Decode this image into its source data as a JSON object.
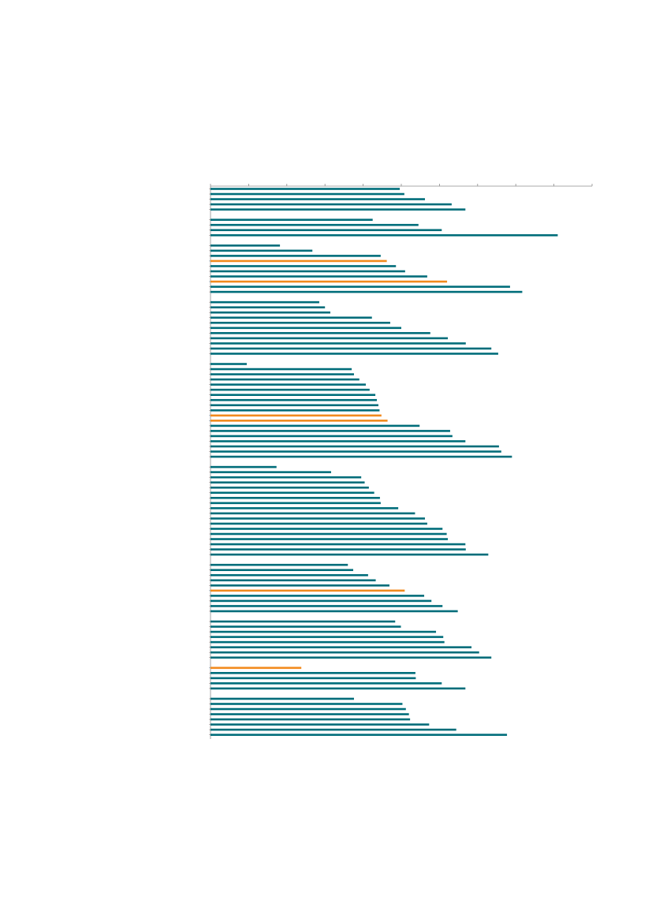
{
  "chart_data": {
    "type": "bar",
    "orientation": "horizontal",
    "title": "",
    "xlabel": "",
    "ylabel": "",
    "xlim": [
      0,
      100
    ],
    "x_ticks": [
      0,
      10,
      20,
      30,
      40,
      50,
      60,
      70,
      80,
      90,
      100
    ],
    "grid": false,
    "legend": "none",
    "colors": {
      "default": "#006d7a",
      "highlight": "#f28a1e",
      "axis": "#8c8c8c"
    },
    "groups": [
      {
        "bars": [
          {
            "value": 49.6,
            "highlight": false
          },
          {
            "value": 50.8,
            "highlight": false
          },
          {
            "value": 56.2,
            "highlight": false
          },
          {
            "value": 63.2,
            "highlight": false
          },
          {
            "value": 66.8,
            "highlight": false
          }
        ]
      },
      {
        "bars": [
          {
            "value": 42.5,
            "highlight": false
          },
          {
            "value": 54.5,
            "highlight": false
          },
          {
            "value": 60.6,
            "highlight": false
          },
          {
            "value": 91.0,
            "highlight": false
          }
        ]
      },
      {
        "bars": [
          {
            "value": 18.2,
            "highlight": false
          },
          {
            "value": 26.7,
            "highlight": false
          },
          {
            "value": 44.6,
            "highlight": false
          },
          {
            "value": 46.2,
            "highlight": true
          },
          {
            "value": 48.6,
            "highlight": false
          },
          {
            "value": 51.0,
            "highlight": false
          },
          {
            "value": 56.8,
            "highlight": false
          },
          {
            "value": 62.0,
            "highlight": true
          },
          {
            "value": 78.5,
            "highlight": false
          },
          {
            "value": 81.7,
            "highlight": false
          }
        ]
      },
      {
        "bars": [
          {
            "value": 28.5,
            "highlight": false
          },
          {
            "value": 30.0,
            "highlight": false
          },
          {
            "value": 31.4,
            "highlight": false
          },
          {
            "value": 42.3,
            "highlight": false
          },
          {
            "value": 47.1,
            "highlight": false
          },
          {
            "value": 50.0,
            "highlight": false
          },
          {
            "value": 57.6,
            "highlight": false
          },
          {
            "value": 62.2,
            "highlight": false
          },
          {
            "value": 66.9,
            "highlight": false
          },
          {
            "value": 73.6,
            "highlight": false
          },
          {
            "value": 75.4,
            "highlight": false
          }
        ]
      },
      {
        "bars": [
          {
            "value": 9.5,
            "highlight": false
          },
          {
            "value": 37.0,
            "highlight": false
          },
          {
            "value": 37.6,
            "highlight": false
          },
          {
            "value": 39.0,
            "highlight": false
          },
          {
            "value": 40.7,
            "highlight": false
          },
          {
            "value": 41.7,
            "highlight": false
          },
          {
            "value": 43.2,
            "highlight": false
          },
          {
            "value": 43.6,
            "highlight": false
          },
          {
            "value": 44.0,
            "highlight": false
          },
          {
            "value": 44.3,
            "highlight": false
          },
          {
            "value": 44.8,
            "highlight": true
          },
          {
            "value": 46.4,
            "highlight": true
          },
          {
            "value": 54.8,
            "highlight": false
          },
          {
            "value": 62.8,
            "highlight": false
          },
          {
            "value": 63.4,
            "highlight": false
          },
          {
            "value": 66.8,
            "highlight": false
          },
          {
            "value": 75.6,
            "highlight": false
          },
          {
            "value": 76.2,
            "highlight": false
          },
          {
            "value": 79.0,
            "highlight": false
          }
        ]
      },
      {
        "bars": [
          {
            "value": 17.3,
            "highlight": false
          },
          {
            "value": 31.6,
            "highlight": false
          },
          {
            "value": 39.5,
            "highlight": false
          },
          {
            "value": 40.4,
            "highlight": false
          },
          {
            "value": 41.5,
            "highlight": false
          },
          {
            "value": 42.9,
            "highlight": false
          },
          {
            "value": 44.4,
            "highlight": false
          },
          {
            "value": 44.6,
            "highlight": false
          },
          {
            "value": 49.2,
            "highlight": false
          },
          {
            "value": 53.6,
            "highlight": false
          },
          {
            "value": 56.2,
            "highlight": false
          },
          {
            "value": 56.8,
            "highlight": false
          },
          {
            "value": 60.8,
            "highlight": false
          },
          {
            "value": 61.9,
            "highlight": false
          },
          {
            "value": 62.2,
            "highlight": false
          },
          {
            "value": 66.8,
            "highlight": false
          },
          {
            "value": 66.9,
            "highlight": false
          },
          {
            "value": 72.8,
            "highlight": false
          }
        ]
      },
      {
        "bars": [
          {
            "value": 36.0,
            "highlight": false
          },
          {
            "value": 37.4,
            "highlight": false
          },
          {
            "value": 41.3,
            "highlight": false
          },
          {
            "value": 43.3,
            "highlight": false
          },
          {
            "value": 46.9,
            "highlight": false
          },
          {
            "value": 50.9,
            "highlight": true
          },
          {
            "value": 56.0,
            "highlight": false
          },
          {
            "value": 57.9,
            "highlight": false
          },
          {
            "value": 60.8,
            "highlight": false
          },
          {
            "value": 64.8,
            "highlight": false
          }
        ]
      },
      {
        "bars": [
          {
            "value": 48.4,
            "highlight": false
          },
          {
            "value": 49.9,
            "highlight": false
          },
          {
            "value": 59.1,
            "highlight": false
          },
          {
            "value": 61.0,
            "highlight": false
          },
          {
            "value": 61.3,
            "highlight": false
          },
          {
            "value": 68.4,
            "highlight": false
          },
          {
            "value": 70.4,
            "highlight": false
          },
          {
            "value": 73.6,
            "highlight": false
          }
        ]
      },
      {
        "bars": [
          {
            "value": 23.8,
            "highlight": true
          },
          {
            "value": 53.7,
            "highlight": false
          },
          {
            "value": 53.8,
            "highlight": false
          },
          {
            "value": 60.6,
            "highlight": false
          },
          {
            "value": 66.8,
            "highlight": false
          }
        ]
      },
      {
        "bars": [
          {
            "value": 37.6,
            "highlight": false
          },
          {
            "value": 50.3,
            "highlight": false
          },
          {
            "value": 51.2,
            "highlight": false
          },
          {
            "value": 52.0,
            "highlight": false
          },
          {
            "value": 52.3,
            "highlight": false
          },
          {
            "value": 57.3,
            "highlight": false
          },
          {
            "value": 64.4,
            "highlight": false
          },
          {
            "value": 77.7,
            "highlight": false
          }
        ]
      }
    ]
  }
}
